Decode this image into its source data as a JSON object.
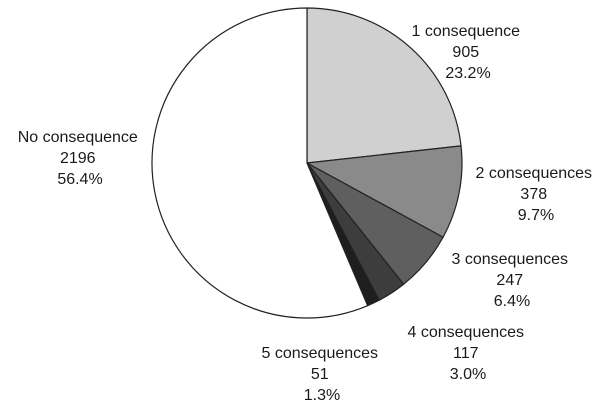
{
  "chart_data": {
    "type": "pie",
    "slices": [
      {
        "label": "1 consequence",
        "count": "905",
        "percent": "23.2%",
        "value": 905,
        "color": "#d0d0d0"
      },
      {
        "label": "2 consequences",
        "count": "378",
        "percent": "9.7%",
        "value": 378,
        "color": "#8a8a8a"
      },
      {
        "label": "3 consequences",
        "count": "247",
        "percent": "6.4%",
        "value": 247,
        "color": "#5f5f5f"
      },
      {
        "label": "4 consequences",
        "count": "117",
        "percent": "3.0%",
        "value": 117,
        "color": "#3d3d3d"
      },
      {
        "label": "5 consequences",
        "count": "51",
        "percent": "1.3%",
        "value": 51,
        "color": "#1e1e1e"
      },
      {
        "label": "No consequence",
        "count": "2196",
        "percent": "56.4%",
        "value": 2196,
        "color": "#ffffff"
      }
    ]
  }
}
